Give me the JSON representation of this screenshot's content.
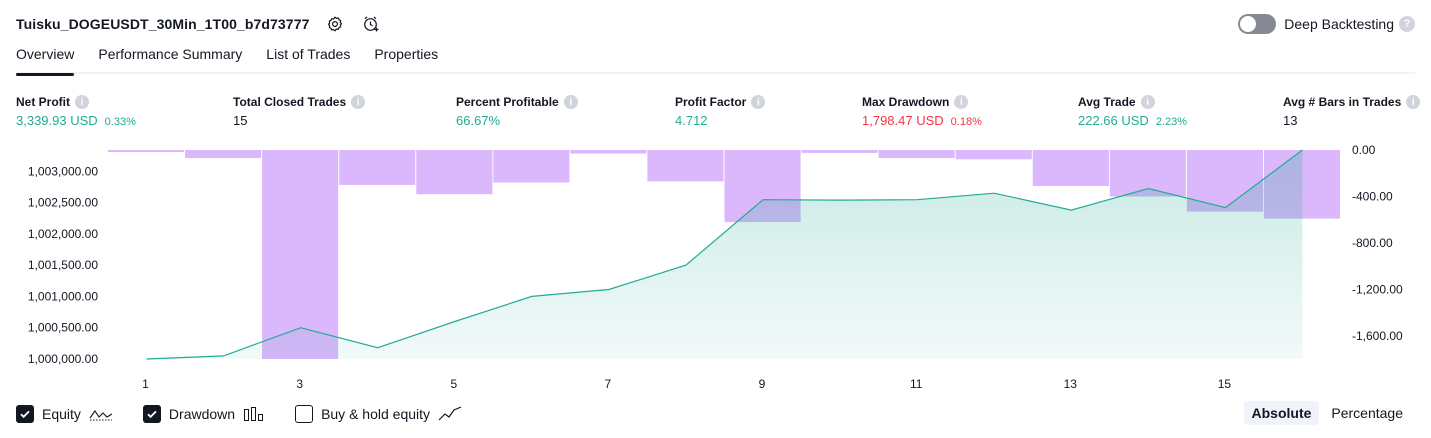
{
  "header": {
    "strategy_name": "Tuisku_DOGEUSDT_30Min_1T00_b7d73777",
    "deep_backtesting_label": "Deep Backtesting",
    "deep_backtesting_enabled": false
  },
  "tabs": [
    {
      "label": "Overview",
      "active": true
    },
    {
      "label": "Performance Summary",
      "active": false
    },
    {
      "label": "List of Trades",
      "active": false
    },
    {
      "label": "Properties",
      "active": false
    }
  ],
  "metrics": [
    {
      "label": "Net Profit",
      "value": "3,339.93 USD",
      "pct": "0.33%",
      "status": "positive"
    },
    {
      "label": "Total Closed Trades",
      "value": "15",
      "pct": "",
      "status": "neutral"
    },
    {
      "label": "Percent Profitable",
      "value": "66.67%",
      "pct": "",
      "status": "positive"
    },
    {
      "label": "Profit Factor",
      "value": "4.712",
      "pct": "",
      "status": "positive"
    },
    {
      "label": "Max Drawdown",
      "value": "1,798.47 USD",
      "pct": "0.18%",
      "status": "negative"
    },
    {
      "label": "Avg Trade",
      "value": "222.66 USD",
      "pct": "2.23%",
      "status": "positive"
    },
    {
      "label": "Avg # Bars in Trades",
      "value": "13",
      "pct": "",
      "status": "neutral"
    }
  ],
  "colors": {
    "positive": "#22ab94",
    "negative": "#f23645",
    "drawdown_bar": "#d9b3fb",
    "equity_line": "#22ab94"
  },
  "chart_data": {
    "type": "line",
    "x": [
      1,
      2,
      3,
      4,
      5,
      6,
      7,
      8,
      9,
      10,
      11,
      12,
      13,
      14,
      15,
      16
    ],
    "x_ticks": [
      "1",
      "3",
      "5",
      "7",
      "9",
      "11",
      "13",
      "15"
    ],
    "series": [
      {
        "name": "Equity",
        "type": "area",
        "axis": "left",
        "values": [
          1000000,
          1000050,
          1000500,
          1000180,
          1000600,
          1001000,
          1001110,
          1001500,
          1002545,
          1002540,
          1002545,
          1002650,
          1002380,
          1002725,
          1002420,
          1003340
        ]
      },
      {
        "name": "Drawdown",
        "type": "bar",
        "axis": "right",
        "values": [
          -10,
          -70,
          -1798.47,
          -300,
          -380,
          -280,
          -30,
          -270,
          -620,
          -25,
          -70,
          -80,
          -310,
          -400,
          -530,
          -590
        ]
      }
    ],
    "y_left_ticks": [
      "1,003,000.00",
      "1,002,500.00",
      "1,002,000.00",
      "1,001,500.00",
      "1,001,000.00",
      "1,000,500.00",
      "1,000,000.00"
    ],
    "y_left_range": [
      1000000,
      1003340
    ],
    "y_right_ticks": [
      "0.00",
      "-400.00",
      "-800.00",
      "-1,200.00",
      "-1,600.00"
    ],
    "y_right_range": [
      -1798.47,
      0
    ],
    "grid": false
  },
  "legend": {
    "items": [
      {
        "label": "Equity",
        "checked": true
      },
      {
        "label": "Drawdown",
        "checked": true
      },
      {
        "label": "Buy & hold equity",
        "checked": false
      }
    ],
    "modes": [
      {
        "label": "Absolute",
        "active": true
      },
      {
        "label": "Percentage",
        "active": false
      }
    ]
  }
}
